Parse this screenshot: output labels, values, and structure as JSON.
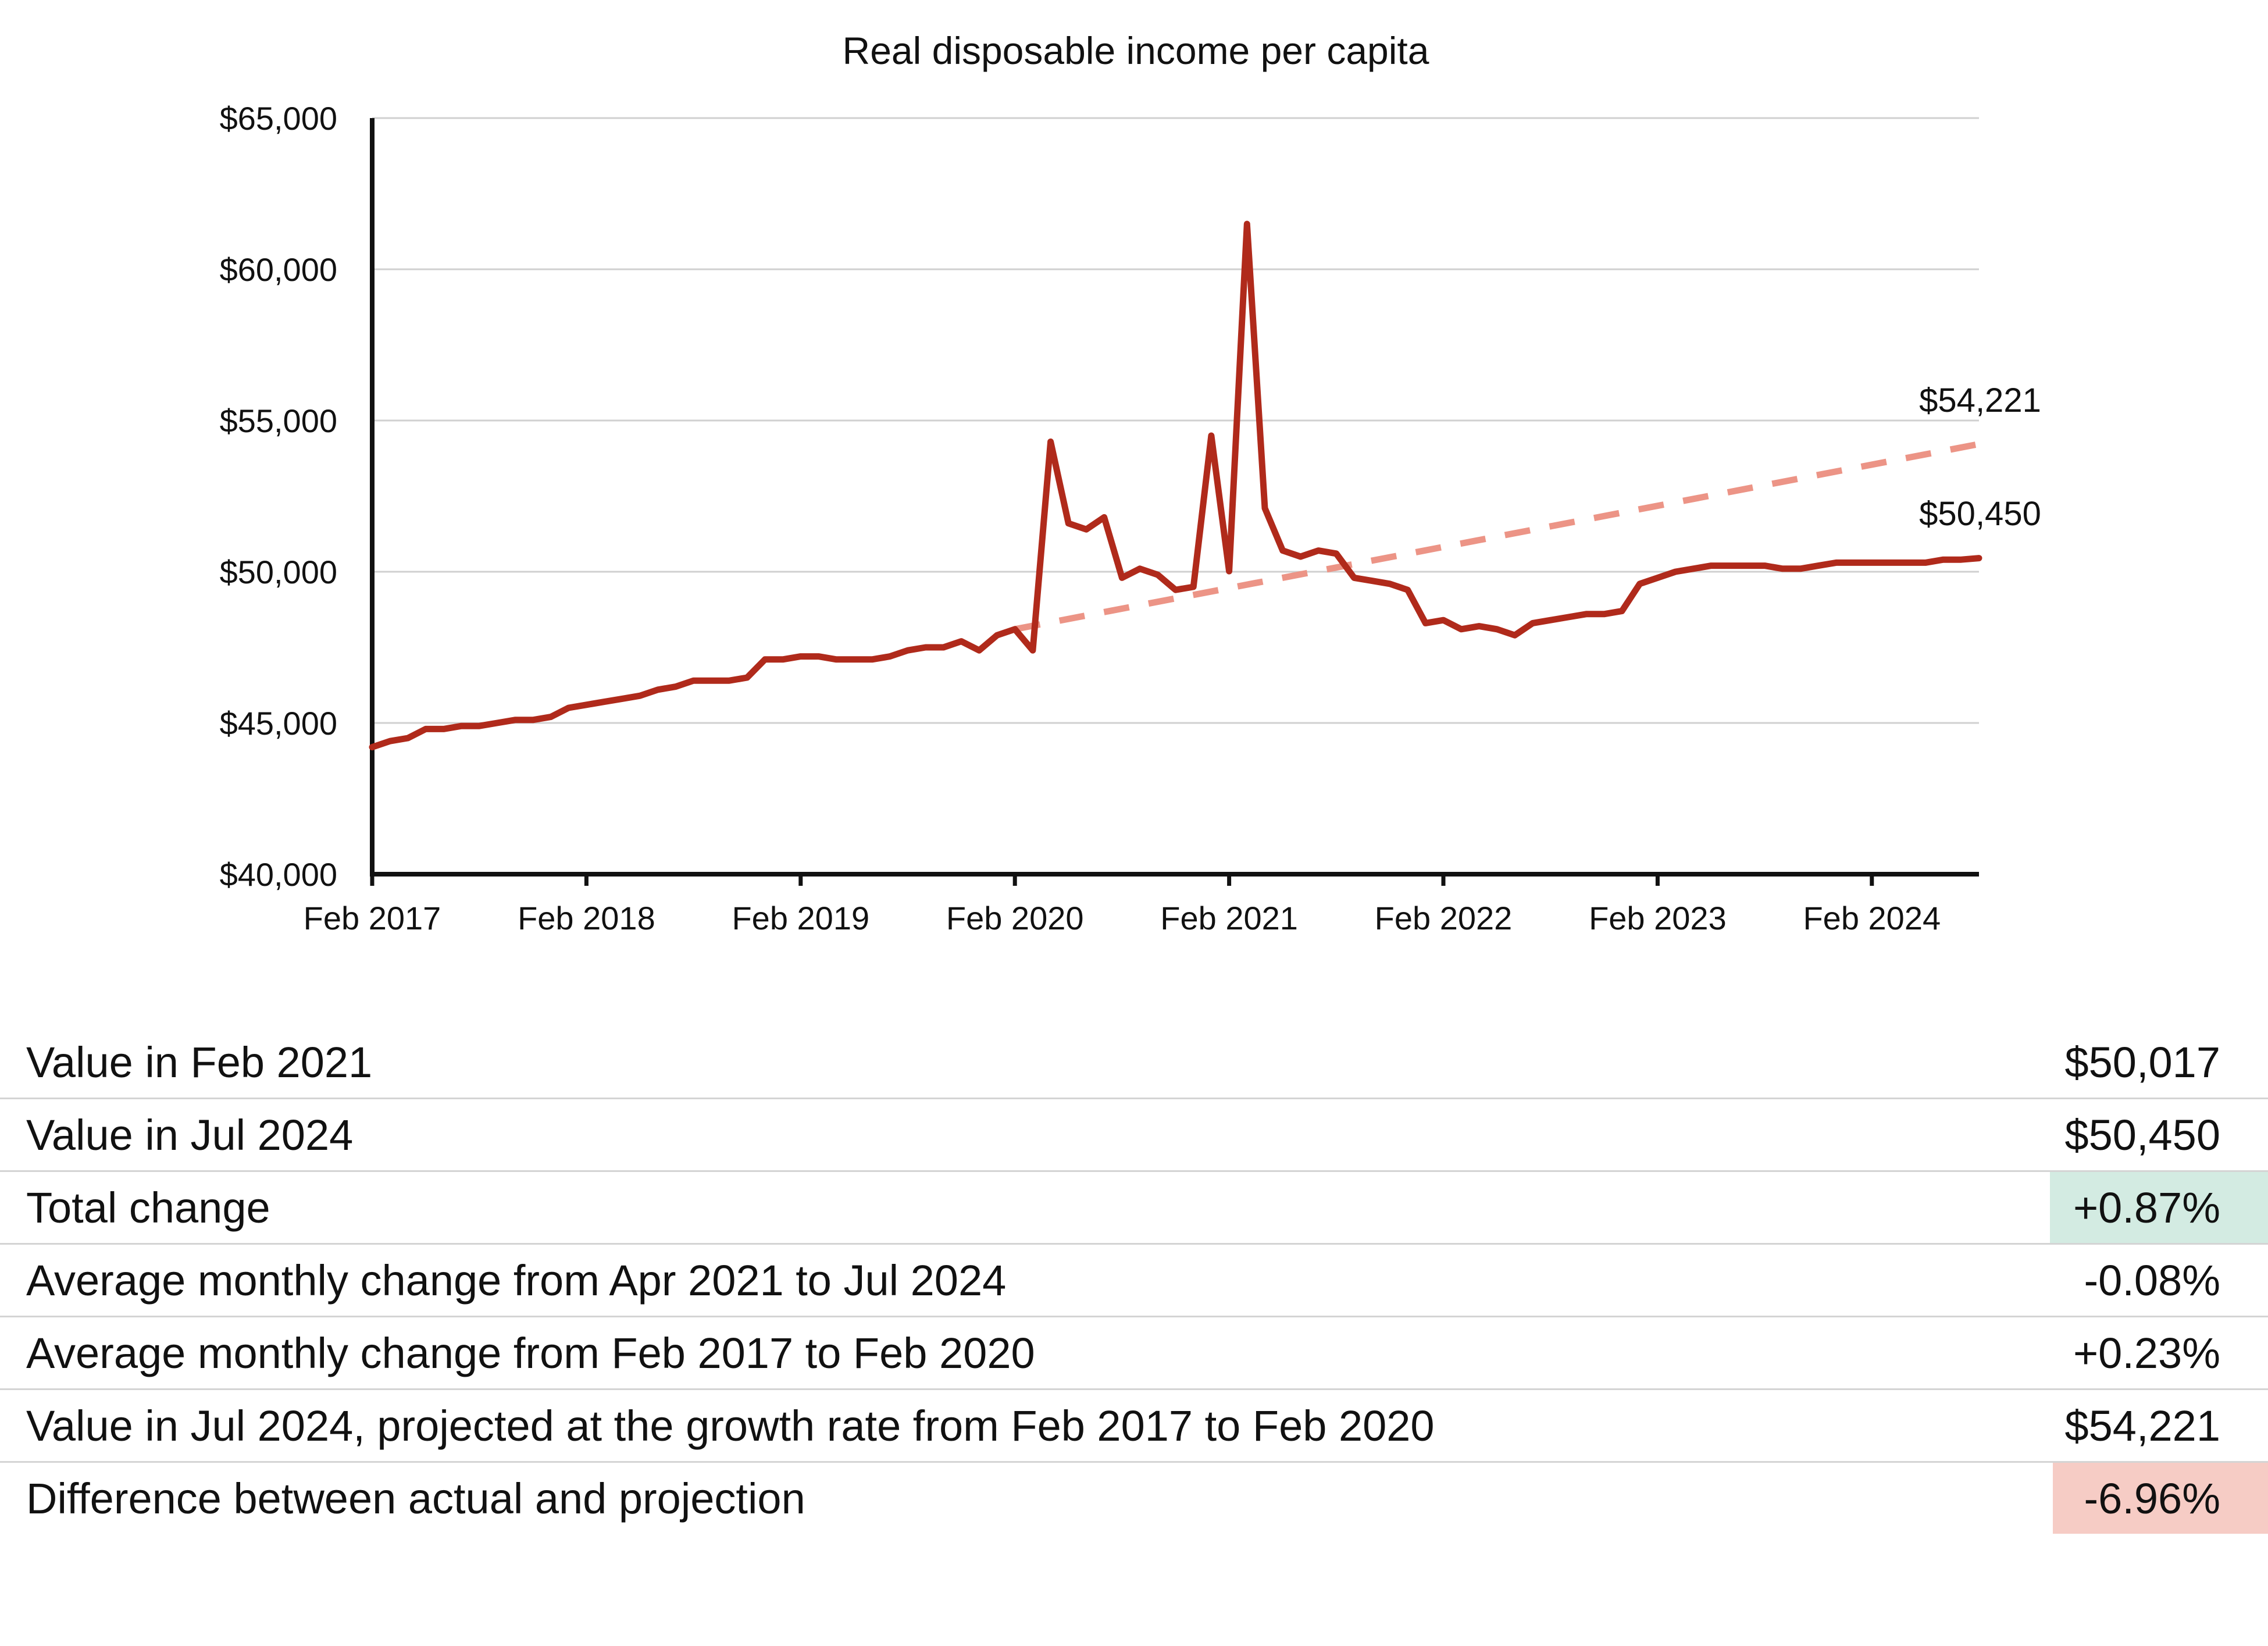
{
  "chart_data": {
    "type": "line",
    "title": "Real disposable income per capita",
    "xlabel": "",
    "ylabel": "",
    "ylim": [
      40000,
      65000
    ],
    "y_ticks": [
      40000,
      45000,
      50000,
      55000,
      60000,
      65000
    ],
    "y_tick_labels": [
      "$40,000",
      "$45,000",
      "$50,000",
      "$55,000",
      "$60,000",
      "$65,000"
    ],
    "x_range": [
      "Feb 2017",
      "Jul 2024"
    ],
    "x_tick_labels": [
      "Feb 2017",
      "Feb 2018",
      "Feb 2019",
      "Feb 2020",
      "Feb 2021",
      "Feb 2022",
      "Feb 2023",
      "Feb 2024"
    ],
    "grid": "horizontal",
    "line_color": "#b02a1b",
    "projection_color": "#ec9486",
    "series": [
      {
        "start": "Feb 2017",
        "frequency": "monthly",
        "values": [
          44200,
          44400,
          44500,
          44800,
          44800,
          44900,
          44900,
          45000,
          45100,
          45100,
          45200,
          45500,
          45600,
          45700,
          45800,
          45900,
          46100,
          46200,
          46400,
          46400,
          46400,
          46500,
          47100,
          47100,
          47200,
          47200,
          47100,
          47100,
          47100,
          47200,
          47400,
          47500,
          47500,
          47700,
          47400,
          47900,
          48100,
          47400,
          54300,
          51600,
          51400,
          51800,
          49800,
          50100,
          49900,
          49400,
          49500,
          54500,
          50017,
          61500,
          52100,
          50700,
          50500,
          50700,
          50600,
          49800,
          49700,
          49600,
          49400,
          48300,
          48400,
          48100,
          48200,
          48100,
          47900,
          48300,
          48400,
          48500,
          48600,
          48600,
          48700,
          49600,
          49800,
          50000,
          50100,
          50200,
          50200,
          50200,
          50200,
          50100,
          50100,
          50200,
          50300,
          50300,
          50300,
          50300,
          50300,
          50300,
          50400,
          50400,
          50450
        ]
      },
      {
        "start": "Feb 2020",
        "end": "Jul 2024",
        "start_value": 48100,
        "end_value": 54221,
        "style": "dashed"
      }
    ],
    "annotations": [
      "$54,221",
      "$50,450"
    ]
  },
  "stats": [
    {
      "label": "Value in Feb 2021",
      "value": "$50,017",
      "highlight": ""
    },
    {
      "label": "Value in Jul 2024",
      "value": "$50,450",
      "highlight": ""
    },
    {
      "label": "Total change",
      "value": "+0.87%",
      "highlight": "#d3ebe2"
    },
    {
      "label": "Average monthly change from Apr 2021 to Jul 2024",
      "value": "-0.08%",
      "highlight": ""
    },
    {
      "label": "Average monthly change from Feb 2017 to Feb 2020",
      "value": "+0.23%",
      "highlight": ""
    },
    {
      "label": "Value in Jul 2024, projected at the growth rate from Feb 2017 to Feb 2020",
      "value": "$54,221",
      "highlight": ""
    },
    {
      "label": "Difference between actual and projection",
      "value": "-6.96%",
      "highlight": "#f6ccc5"
    }
  ]
}
